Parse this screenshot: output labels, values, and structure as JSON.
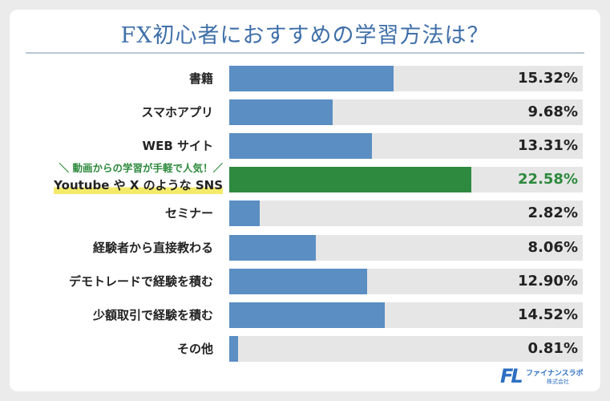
{
  "chart_data": {
    "type": "bar",
    "orientation": "horizontal",
    "title": "FX初心者におすすめの学習方法は？",
    "categories": [
      "書籍",
      "スマホアプリ",
      "WEB サイト",
      "Youtube や X のような SNS",
      "セミナー",
      "経験者から直接教わる",
      "デモトレードで経験を積む",
      "少額取引で経験を積む",
      "その他"
    ],
    "values": [
      15.32,
      9.68,
      13.31,
      22.58,
      2.82,
      8.06,
      12.9,
      14.52,
      0.81
    ],
    "value_labels": [
      "15.32%",
      "9.68%",
      "13.31%",
      "22.58%",
      "2.82%",
      "8.06%",
      "12.90%",
      "14.52%",
      "0.81%"
    ],
    "xlim": [
      0,
      33
    ],
    "highlight_index": 3,
    "highlight_note": "＼ 動画からの学習が手軽で人気！／",
    "colors": {
      "bar": "#5b8ec3",
      "highlight": "#2e8a3e",
      "track": "#e6e6e6",
      "title": "#3f6fa8"
    }
  },
  "logo": {
    "mark": "FL",
    "name": "ファイナンスラボ",
    "sub": "株式会社"
  }
}
